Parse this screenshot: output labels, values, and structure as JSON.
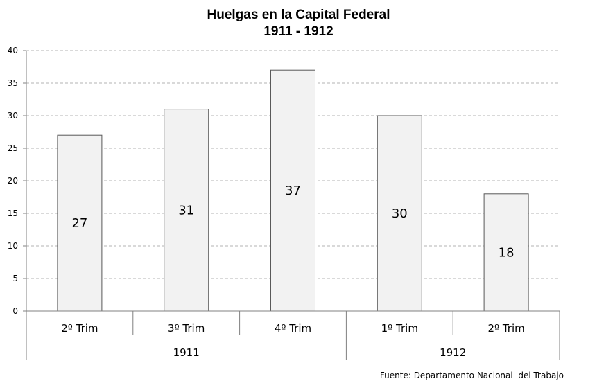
{
  "chart_data": {
    "type": "bar",
    "title": "Huelgas en la Capital Federal",
    "subtitle": "1911 - 1912",
    "categories": [
      "2º Trim",
      "3º Trim",
      "4º Trim",
      "1º Trim",
      "2º Trim"
    ],
    "groups": [
      {
        "label": "1911",
        "count": 3
      },
      {
        "label": "1912",
        "count": 2
      }
    ],
    "values": [
      27,
      31,
      37,
      30,
      18
    ],
    "ylim": [
      0,
      40
    ],
    "yticks": [
      0,
      5,
      10,
      15,
      20,
      25,
      30,
      35,
      40
    ],
    "grid": true,
    "bar_color": "#f2f2f2",
    "bar_edge_color": "#595959"
  },
  "source": "Fuente: Departamento Nacional  del Trabajo"
}
